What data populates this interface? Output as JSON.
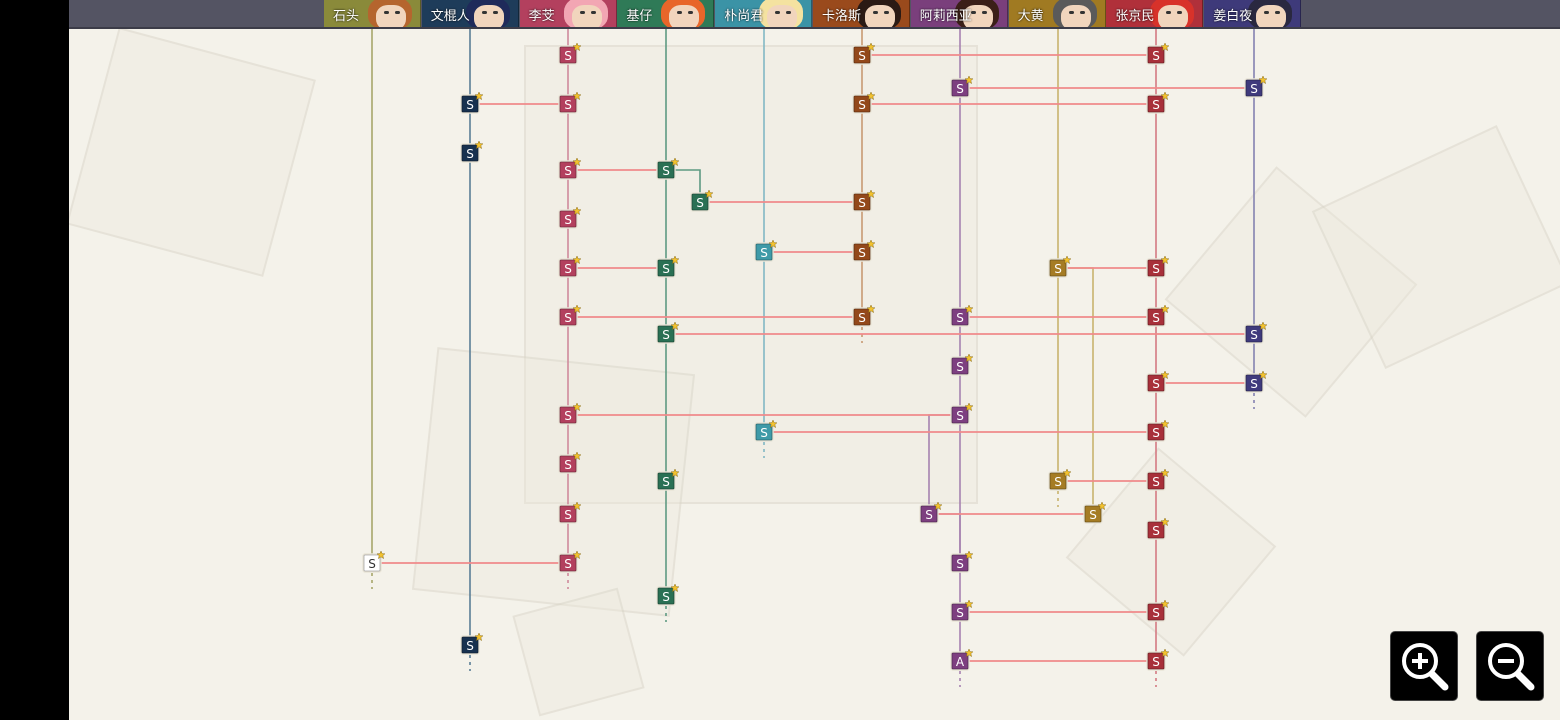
{
  "characters": [
    {
      "key": "c1",
      "name": "石头",
      "color": "#8a8a3a",
      "hair": "#b5652e"
    },
    {
      "key": "c2",
      "name": "文棍人",
      "color": "#1e3c5a",
      "hair": "#1f2a5a"
    },
    {
      "key": "c3",
      "name": "李芠",
      "color": "#b3405e",
      "hair": "#f2a6b3"
    },
    {
      "key": "c4",
      "name": "基仔",
      "color": "#2f7a57",
      "hair": "#e8662a"
    },
    {
      "key": "c5",
      "name": "朴尚君",
      "color": "#3b93a6",
      "hair": "#f4e2a0"
    },
    {
      "key": "c6",
      "name": "卡洛斯",
      "color": "#9a4a1c",
      "hair": "#2b1a14"
    },
    {
      "key": "c7",
      "name": "阿莉西亚",
      "color": "#7a3f7c",
      "hair": "#3b1f18"
    },
    {
      "key": "c8",
      "name": "大黄",
      "color": "#a07a22",
      "hair": "#5a5a5a"
    },
    {
      "key": "c9",
      "name": "张京民",
      "color": "#b0303a",
      "hair": "#d8322a"
    },
    {
      "key": "c10",
      "name": "姜白夜",
      "color": "#3e3a7a",
      "hair": "#2a2840"
    }
  ],
  "lane_colors": {
    "c1": "#a6a66a",
    "c2": "#5a7e96",
    "c3": "#cf8a9c",
    "c4": "#5e9a82",
    "c5": "#82b8c4",
    "c6": "#c89a72",
    "c7": "#a682b0",
    "c8": "#c8b46e",
    "c9": "#d47a82",
    "c10": "#8482b0"
  },
  "node_colors": {
    "c1": "#ffffff",
    "c2": "#17314f",
    "c3": "#b3405e",
    "c4": "#2a7054",
    "c5": "#3f9aa8",
    "c6": "#93481a",
    "c7": "#7d3f80",
    "c8": "#a57c24",
    "c9": "#a8303a",
    "c10": "#3f3a7c"
  },
  "link_color": "#f08a8a",
  "nodes": [
    {
      "id": "n1",
      "char": "c3",
      "row": 55,
      "label": "S"
    },
    {
      "id": "n2",
      "char": "c6",
      "row": 55,
      "label": "S"
    },
    {
      "id": "n3",
      "char": "c9",
      "row": 55,
      "label": "S"
    },
    {
      "id": "n4",
      "char": "c7",
      "row": 88,
      "label": "S"
    },
    {
      "id": "n5",
      "char": "c10",
      "row": 88,
      "label": "S"
    },
    {
      "id": "n6",
      "char": "c2",
      "row": 104,
      "label": "S"
    },
    {
      "id": "n7",
      "char": "c3",
      "row": 104,
      "label": "S"
    },
    {
      "id": "n8",
      "char": "c6",
      "row": 104,
      "label": "S"
    },
    {
      "id": "n9",
      "char": "c9",
      "row": 104,
      "label": "S"
    },
    {
      "id": "n10",
      "char": "c2",
      "row": 153,
      "label": "S"
    },
    {
      "id": "n11",
      "char": "c3",
      "row": 170,
      "label": "S"
    },
    {
      "id": "n12",
      "char": "c4",
      "row": 170,
      "label": "S"
    },
    {
      "id": "n13",
      "char": "c4b",
      "row": 202,
      "label": "S"
    },
    {
      "id": "n14",
      "char": "c6",
      "row": 202,
      "label": "S"
    },
    {
      "id": "n15",
      "char": "c3",
      "row": 219,
      "label": "S"
    },
    {
      "id": "n16",
      "char": "c5",
      "row": 252,
      "label": "S"
    },
    {
      "id": "n17",
      "char": "c6",
      "row": 252,
      "label": "S"
    },
    {
      "id": "n18",
      "char": "c3",
      "row": 268,
      "label": "S"
    },
    {
      "id": "n19",
      "char": "c4",
      "row": 268,
      "label": "S"
    },
    {
      "id": "n20",
      "char": "c8",
      "row": 268,
      "label": "S"
    },
    {
      "id": "n21",
      "char": "c9",
      "row": 268,
      "label": "S"
    },
    {
      "id": "n22",
      "char": "c3",
      "row": 317,
      "label": "S"
    },
    {
      "id": "n23",
      "char": "c6",
      "row": 317,
      "label": "S"
    },
    {
      "id": "n24",
      "char": "c7",
      "row": 317,
      "label": "S"
    },
    {
      "id": "n25",
      "char": "c9",
      "row": 317,
      "label": "S"
    },
    {
      "id": "n26",
      "char": "c4",
      "row": 334,
      "label": "S"
    },
    {
      "id": "n27",
      "char": "c10",
      "row": 334,
      "label": "S"
    },
    {
      "id": "n28",
      "char": "c7",
      "row": 366,
      "label": "S"
    },
    {
      "id": "n29",
      "char": "c9",
      "row": 383,
      "label": "S"
    },
    {
      "id": "n30",
      "char": "c10",
      "row": 383,
      "label": "S"
    },
    {
      "id": "n31",
      "char": "c3",
      "row": 415,
      "label": "S"
    },
    {
      "id": "n32",
      "char": "c7",
      "row": 415,
      "label": "S"
    },
    {
      "id": "n33",
      "char": "c5",
      "row": 432,
      "label": "S"
    },
    {
      "id": "n34",
      "char": "c9",
      "row": 432,
      "label": "S"
    },
    {
      "id": "n35",
      "char": "c3",
      "row": 464,
      "label": "S"
    },
    {
      "id": "n36",
      "char": "c4",
      "row": 481,
      "label": "S"
    },
    {
      "id": "n37",
      "char": "c8",
      "row": 481,
      "label": "S"
    },
    {
      "id": "n38",
      "char": "c9",
      "row": 481,
      "label": "S"
    },
    {
      "id": "n39",
      "char": "c3",
      "row": 514,
      "label": "S"
    },
    {
      "id": "n40",
      "char": "c7b",
      "row": 514,
      "label": "S"
    },
    {
      "id": "n41",
      "char": "c8b",
      "row": 514,
      "label": "S"
    },
    {
      "id": "n42",
      "char": "c9",
      "row": 530,
      "label": "S"
    },
    {
      "id": "n43",
      "char": "c1",
      "row": 563,
      "label": "S"
    },
    {
      "id": "n44",
      "char": "c3",
      "row": 563,
      "label": "S"
    },
    {
      "id": "n45",
      "char": "c7",
      "row": 563,
      "label": "S"
    },
    {
      "id": "n46",
      "char": "c4",
      "row": 596,
      "label": "S"
    },
    {
      "id": "n47",
      "char": "c7",
      "row": 612,
      "label": "S"
    },
    {
      "id": "n48",
      "char": "c9",
      "row": 612,
      "label": "S"
    },
    {
      "id": "n49",
      "char": "c2",
      "row": 645,
      "label": "S"
    },
    {
      "id": "n50",
      "char": "c7",
      "row": 661,
      "label": "A"
    },
    {
      "id": "n51",
      "char": "c9",
      "row": 661,
      "label": "S"
    }
  ],
  "links": [
    [
      "n2",
      "n3"
    ],
    [
      "n4",
      "n5"
    ],
    [
      "n6",
      "n7"
    ],
    [
      "n8",
      "n9"
    ],
    [
      "n11",
      "n12"
    ],
    [
      "n13",
      "n14"
    ],
    [
      "n16",
      "n17"
    ],
    [
      "n18",
      "n19"
    ],
    [
      "n20",
      "n21"
    ],
    [
      "n22",
      "n23"
    ],
    [
      "n24",
      "n25"
    ],
    [
      "n26",
      "n27"
    ],
    [
      "n29",
      "n30"
    ],
    [
      "n31",
      "n32"
    ],
    [
      "n33",
      "n34"
    ],
    [
      "n37",
      "n38"
    ],
    [
      "n40",
      "n41"
    ],
    [
      "n43",
      "n44"
    ],
    [
      "n47",
      "n48"
    ],
    [
      "n50",
      "n51"
    ]
  ],
  "branches": [
    {
      "from": "n12",
      "to": "n13",
      "char": "c4"
    },
    {
      "from": "n32",
      "to": "n40",
      "char": "c7"
    },
    {
      "from": "n20",
      "to": "n41",
      "char": "c8"
    },
    {
      "from": "n40",
      "to": "n45",
      "char": "c7"
    }
  ],
  "zoom": {
    "in_icon": "zoom-in-icon",
    "out_icon": "zoom-out-icon"
  }
}
